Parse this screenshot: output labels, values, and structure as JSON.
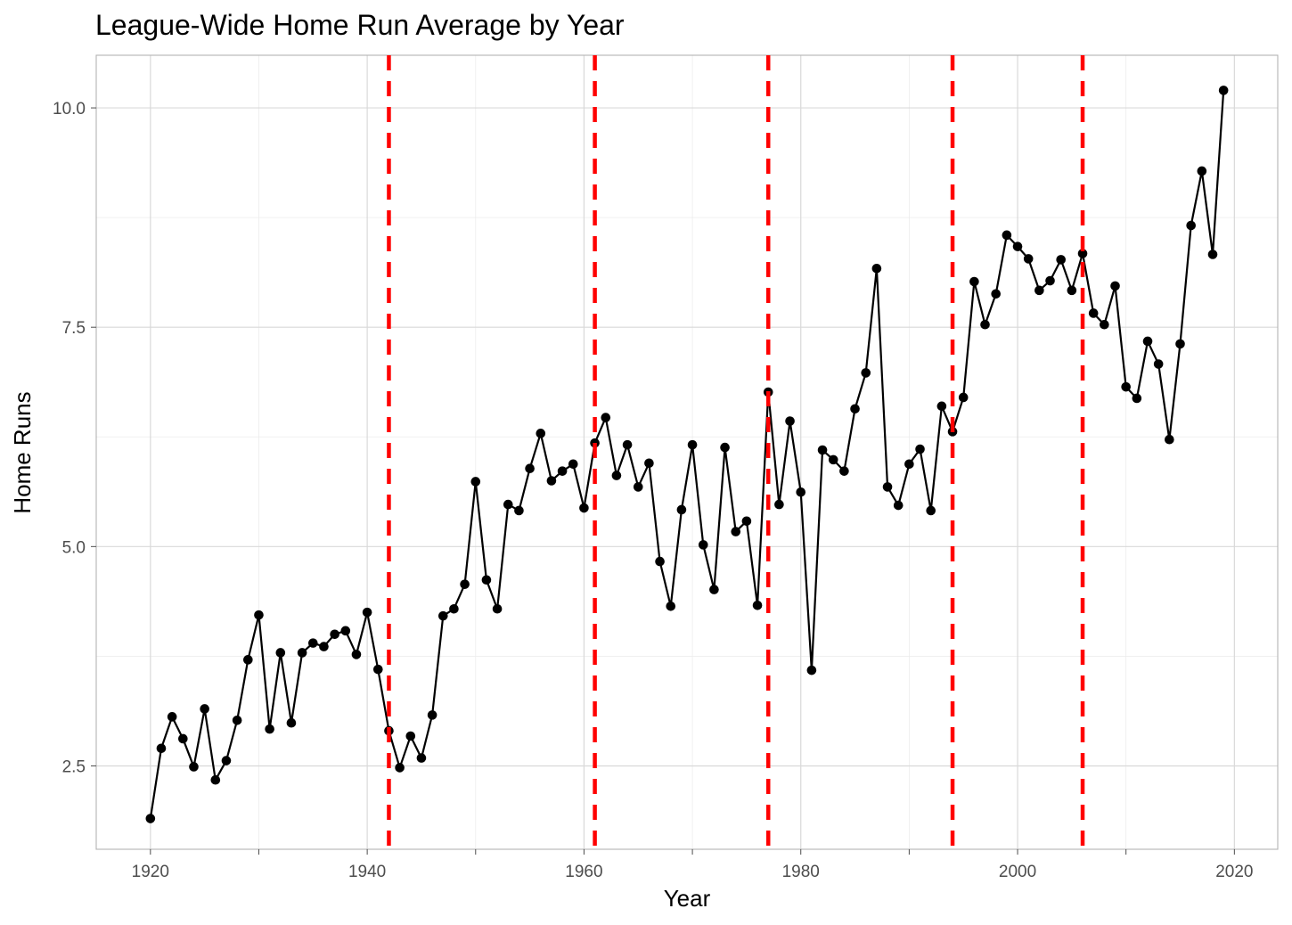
{
  "chart_data": {
    "type": "line",
    "title": "League-Wide Home Run Average by Year",
    "xlabel": "Year",
    "ylabel": "Home Runs",
    "xlim": [
      1915,
      2024
    ],
    "ylim": [
      1.55,
      10.6
    ],
    "x_ticks": [
      1920,
      1940,
      1960,
      1980,
      2000,
      2020
    ],
    "x_tick_labels": [
      "1920",
      "1940",
      "1960",
      "1980",
      "2000",
      "2020"
    ],
    "y_ticks": [
      2.5,
      5.0,
      7.5,
      10.0
    ],
    "y_tick_labels": [
      "2.5",
      "5.0",
      "7.5",
      "10.0"
    ],
    "grid": true,
    "markers": true,
    "line_color": "#000000",
    "vline_color": "#ff0000",
    "vlines": [
      1942,
      1961,
      1977,
      1994,
      2006
    ],
    "x": [
      1920,
      1921,
      1922,
      1923,
      1924,
      1925,
      1926,
      1927,
      1928,
      1929,
      1930,
      1931,
      1932,
      1933,
      1934,
      1935,
      1936,
      1937,
      1938,
      1939,
      1940,
      1941,
      1942,
      1943,
      1944,
      1945,
      1946,
      1947,
      1948,
      1949,
      1950,
      1951,
      1952,
      1953,
      1954,
      1955,
      1956,
      1957,
      1958,
      1959,
      1960,
      1961,
      1962,
      1963,
      1964,
      1965,
      1966,
      1967,
      1968,
      1969,
      1970,
      1971,
      1972,
      1973,
      1974,
      1975,
      1976,
      1977,
      1978,
      1979,
      1980,
      1981,
      1982,
      1983,
      1984,
      1985,
      1986,
      1987,
      1988,
      1989,
      1990,
      1991,
      1992,
      1993,
      1994,
      1995,
      1996,
      1997,
      1998,
      1999,
      2000,
      2001,
      2002,
      2003,
      2004,
      2005,
      2006,
      2007,
      2008,
      2009,
      2010,
      2011,
      2012,
      2013,
      2014,
      2015,
      2016,
      2017,
      2018,
      2019
    ],
    "y": [
      1.9,
      2.7,
      3.06,
      2.81,
      2.49,
      3.15,
      2.34,
      2.56,
      3.02,
      3.71,
      4.22,
      2.92,
      3.79,
      2.99,
      3.79,
      3.9,
      3.86,
      4.0,
      4.04,
      3.77,
      4.25,
      3.6,
      2.9,
      2.48,
      2.84,
      2.59,
      3.08,
      4.21,
      4.29,
      4.57,
      5.74,
      4.62,
      4.29,
      5.48,
      5.41,
      5.89,
      6.29,
      5.75,
      5.86,
      5.94,
      5.44,
      6.18,
      6.47,
      5.81,
      6.16,
      5.68,
      5.95,
      4.83,
      4.32,
      5.42,
      6.16,
      5.02,
      4.51,
      6.13,
      5.17,
      5.29,
      4.33,
      6.76,
      5.48,
      6.43,
      5.62,
      3.59,
      6.1,
      5.99,
      5.86,
      6.57,
      6.98,
      8.17,
      5.68,
      5.47,
      5.94,
      6.11,
      5.41,
      6.6,
      6.31,
      6.7,
      8.02,
      7.53,
      7.88,
      8.55,
      8.42,
      8.28,
      7.92,
      8.03,
      8.27,
      7.92,
      8.34,
      7.66,
      7.53,
      7.97,
      6.82,
      6.69,
      7.34,
      7.08,
      6.22,
      7.31,
      8.66,
      9.28,
      8.33,
      10.2
    ]
  }
}
